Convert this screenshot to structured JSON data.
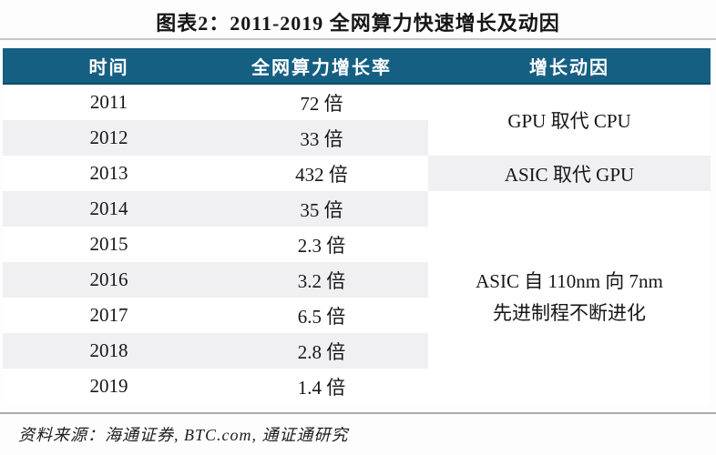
{
  "title": "图表2：2011-2019 全网算力快速增长及动因",
  "header": {
    "time": "时间",
    "growth": "全网算力增长率",
    "driver": "增长动因"
  },
  "rows": [
    {
      "year": "2011",
      "growth": "72 倍"
    },
    {
      "year": "2012",
      "growth": "33 倍"
    },
    {
      "year": "2013",
      "growth": "432 倍"
    },
    {
      "year": "2014",
      "growth": "35 倍"
    },
    {
      "year": "2015",
      "growth": "2.3 倍"
    },
    {
      "year": "2016",
      "growth": "3.2 倍"
    },
    {
      "year": "2017",
      "growth": "6.5 倍"
    },
    {
      "year": "2018",
      "growth": "2.8 倍"
    },
    {
      "year": "2019",
      "growth": "1.4 倍"
    }
  ],
  "drivers": {
    "d1": {
      "label": "GPU 取代 CPU"
    },
    "d2": {
      "label": "ASIC 取代 GPU"
    },
    "d3": {
      "line1": "ASIC 自 110nm 向 7nm",
      "line2": "先进制程不断进化"
    }
  },
  "source": "资料来源：海通证券, BTC.com, 通证通研究",
  "colors": {
    "header_bg": "#155f83",
    "header_border_bottom": "#0f4a66",
    "header_text": "#ffffff",
    "stripe": "#f0eff1",
    "top_rule": "#c6c6c6",
    "bottom_rule": "#ababab",
    "body_text": "#161616"
  },
  "chart_data": {
    "type": "table",
    "title": "图表2：2011-2019 全网算力快速增长及动因",
    "columns": [
      "时间",
      "全网算力增长率",
      "增长动因"
    ],
    "rows": [
      [
        "2011",
        "72 倍",
        "GPU 取代 CPU"
      ],
      [
        "2012",
        "33 倍",
        "GPU 取代 CPU"
      ],
      [
        "2013",
        "432 倍",
        "ASIC 取代 GPU"
      ],
      [
        "2014",
        "35 倍",
        "ASIC 自 110nm 向 7nm 先进制程不断进化"
      ],
      [
        "2015",
        "2.3 倍",
        "ASIC 自 110nm 向 7nm 先进制程不断进化"
      ],
      [
        "2016",
        "3.2 倍",
        "ASIC 自 110nm 向 7nm 先进制程不断进化"
      ],
      [
        "2017",
        "6.5 倍",
        "ASIC 自 110nm 向 7nm 先进制程不断进化"
      ],
      [
        "2018",
        "2.8 倍",
        "ASIC 自 110nm 向 7nm 先进制程不断进化"
      ],
      [
        "2019",
        "1.4 倍",
        "ASIC 自 110nm 向 7nm 先进制程不断进化"
      ]
    ],
    "growth_multiples": [
      72,
      33,
      432,
      35,
      2.3,
      3.2,
      6.5,
      2.8,
      1.4
    ],
    "merged_driver_cells": [
      {
        "label": "GPU 取代 CPU",
        "year_rows": [
          "2011",
          "2012"
        ]
      },
      {
        "label": "ASIC 取代 GPU",
        "year_rows": [
          "2013"
        ]
      },
      {
        "label": "ASIC 自 110nm 向 7nm 先进制程不断进化",
        "year_rows": [
          "2014",
          "2015",
          "2016",
          "2017",
          "2018",
          "2019"
        ]
      }
    ],
    "source": "资料来源：海通证券, BTC.com, 通证通研究"
  }
}
